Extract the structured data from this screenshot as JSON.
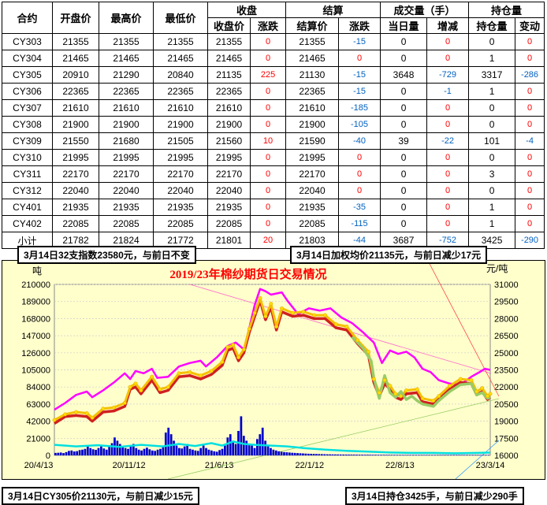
{
  "table": {
    "group_headers": {
      "close": "收盘",
      "settle": "结算",
      "volume": "成交量（手）",
      "oi": "持仓量"
    },
    "columns": [
      "合约",
      "开盘价",
      "最高价",
      "最低价",
      "收盘价",
      "涨跌",
      "结算价",
      "涨跌",
      "当日量",
      "增减",
      "持仓量",
      "变动"
    ],
    "rows": [
      [
        "CY303",
        "21355",
        "21355",
        "21355",
        "21355",
        "0",
        "21355",
        "-15",
        "0",
        "0",
        "0",
        "0"
      ],
      [
        "CY304",
        "21465",
        "21465",
        "21465",
        "21465",
        "0",
        "21465",
        "0",
        "0",
        "0",
        "1",
        "0"
      ],
      [
        "CY305",
        "20910",
        "21290",
        "20840",
        "21135",
        "225",
        "21130",
        "-15",
        "3648",
        "-729",
        "3317",
        "-286"
      ],
      [
        "CY306",
        "22365",
        "22365",
        "22365",
        "22365",
        "0",
        "22365",
        "-15",
        "0",
        "-1",
        "1",
        "0"
      ],
      [
        "CY307",
        "21610",
        "21610",
        "21610",
        "21610",
        "0",
        "21610",
        "-185",
        "0",
        "0",
        "0",
        "0"
      ],
      [
        "CY308",
        "21900",
        "21900",
        "21900",
        "21900",
        "0",
        "21900",
        "-105",
        "0",
        "0",
        "0",
        "0"
      ],
      [
        "CY309",
        "21550",
        "21680",
        "21505",
        "21560",
        "10",
        "21590",
        "-40",
        "39",
        "-22",
        "101",
        "-4"
      ],
      [
        "CY310",
        "21995",
        "21995",
        "21995",
        "21995",
        "0",
        "21995",
        "0",
        "0",
        "0",
        "0",
        "0"
      ],
      [
        "CY311",
        "22170",
        "22170",
        "22170",
        "22170",
        "0",
        "22170",
        "0",
        "0",
        "0",
        "3",
        "0"
      ],
      [
        "CY312",
        "22040",
        "22040",
        "22040",
        "22040",
        "0",
        "22040",
        "0",
        "0",
        "0",
        "0",
        "0"
      ],
      [
        "CY401",
        "21935",
        "21935",
        "21935",
        "21935",
        "0",
        "21935",
        "-35",
        "0",
        "0",
        "1",
        "0"
      ],
      [
        "CY402",
        "22085",
        "22085",
        "22085",
        "22085",
        "0",
        "22085",
        "-115",
        "0",
        "0",
        "1",
        "0"
      ],
      [
        "小计",
        "21782",
        "21824",
        "21772",
        "21801",
        "20",
        "21803",
        "-44",
        "3687",
        "-752",
        "3425",
        "-290"
      ]
    ]
  },
  "callouts": {
    "index": "3月14日32支指数23580元，与前日不变",
    "weighted": "3月14日加权均价21135元，与前日减少17元",
    "cy305": "3月14日CY305价21130元，与前日减少15元",
    "oi": "3月14日持仓3425手，与前日减少290手"
  },
  "chart_data": {
    "type": "line",
    "title": "2019/23年棉纱期货日交易情况",
    "left_unit": "吨",
    "right_unit": "元/吨",
    "left_ticks": [
      0,
      21000,
      42000,
      63000,
      84000,
      105000,
      126000,
      147000,
      168000,
      189000,
      210000
    ],
    "right_ticks": [
      16000,
      17500,
      19000,
      20500,
      22000,
      23500,
      25000,
      26500,
      28000,
      29500,
      31000
    ],
    "ylim_left": [
      0,
      210000
    ],
    "ylim_right": [
      16000,
      31000
    ],
    "x_ticks": [
      "20/4/13",
      "20/11/12",
      "21/6/13",
      "22/1/12",
      "22/8/13",
      "23/3/14"
    ],
    "series": [
      {
        "axis": "right",
        "color": "#ff00ff",
        "points": [
          [
            0,
            20000
          ],
          [
            4,
            20600
          ],
          [
            8,
            21300
          ],
          [
            12,
            21600
          ],
          [
            14,
            21100
          ],
          [
            18,
            21700
          ],
          [
            22,
            22400
          ],
          [
            26,
            23200
          ],
          [
            28,
            22700
          ],
          [
            30,
            23400
          ],
          [
            33,
            23200
          ],
          [
            36,
            23600
          ],
          [
            38,
            22800
          ],
          [
            42,
            22900
          ],
          [
            46,
            23800
          ],
          [
            50,
            24100
          ],
          [
            54,
            24300
          ],
          [
            56,
            23800
          ],
          [
            60,
            24600
          ],
          [
            64,
            25600
          ],
          [
            67,
            25900
          ],
          [
            70,
            25300
          ],
          [
            72,
            27200
          ],
          [
            74,
            29200
          ],
          [
            76,
            30600
          ],
          [
            78,
            30400
          ],
          [
            80,
            30100
          ],
          [
            84,
            30300
          ],
          [
            86,
            29600
          ],
          [
            90,
            28400
          ],
          [
            94,
            28900
          ],
          [
            98,
            28700
          ],
          [
            102,
            28900
          ],
          [
            106,
            28100
          ],
          [
            110,
            27600
          ],
          [
            114,
            26800
          ],
          [
            118,
            25900
          ],
          [
            121,
            24100
          ],
          [
            124,
            25200
          ],
          [
            127,
            24900
          ],
          [
            130,
            25100
          ],
          [
            133,
            24600
          ],
          [
            136,
            23600
          ],
          [
            139,
            23300
          ],
          [
            142,
            22600
          ],
          [
            146,
            22300
          ],
          [
            150,
            22200
          ],
          [
            154,
            22900
          ],
          [
            157,
            23300
          ],
          [
            159,
            23600
          ],
          [
            161,
            23500
          ]
        ]
      },
      {
        "axis": "right",
        "color": "#d02020",
        "points": [
          [
            0,
            18800
          ],
          [
            4,
            19400
          ],
          [
            8,
            19500
          ],
          [
            12,
            19400
          ],
          [
            14,
            19000
          ],
          [
            18,
            19800
          ],
          [
            22,
            19900
          ],
          [
            26,
            20300
          ],
          [
            28,
            21800
          ],
          [
            30,
            22000
          ],
          [
            32,
            21400
          ],
          [
            36,
            22600
          ],
          [
            39,
            21500
          ],
          [
            42,
            21700
          ],
          [
            46,
            22900
          ],
          [
            50,
            23000
          ],
          [
            54,
            22700
          ],
          [
            58,
            23100
          ],
          [
            62,
            23900
          ],
          [
            64,
            25200
          ],
          [
            66,
            25400
          ],
          [
            68,
            24300
          ],
          [
            70,
            25000
          ],
          [
            72,
            26800
          ],
          [
            74,
            28200
          ],
          [
            76,
            29600
          ],
          [
            78,
            27900
          ],
          [
            80,
            29000
          ],
          [
            82,
            27000
          ],
          [
            84,
            28600
          ],
          [
            88,
            28200
          ],
          [
            92,
            28300
          ],
          [
            96,
            28000
          ],
          [
            100,
            28000
          ],
          [
            104,
            27200
          ],
          [
            108,
            27000
          ],
          [
            112,
            25800
          ],
          [
            116,
            24800
          ],
          [
            118,
            22400
          ],
          [
            120,
            21200
          ],
          [
            122,
            22300
          ],
          [
            124,
            21800
          ],
          [
            126,
            21100
          ],
          [
            128,
            20900
          ],
          [
            130,
            21400
          ],
          [
            134,
            21500
          ],
          [
            136,
            20700
          ],
          [
            140,
            20500
          ],
          [
            142,
            20900
          ],
          [
            146,
            21800
          ],
          [
            150,
            22400
          ],
          [
            154,
            22300
          ],
          [
            156,
            21300
          ],
          [
            158,
            21600
          ],
          [
            160,
            20900
          ],
          [
            161,
            21100
          ]
        ]
      },
      {
        "axis": "right",
        "color": "#f5c000",
        "points": [
          [
            0,
            19100
          ],
          [
            4,
            19600
          ],
          [
            8,
            19800
          ],
          [
            12,
            19700
          ],
          [
            14,
            19300
          ],
          [
            18,
            20100
          ],
          [
            22,
            20200
          ],
          [
            26,
            20600
          ],
          [
            28,
            22000
          ],
          [
            30,
            22300
          ],
          [
            32,
            21700
          ],
          [
            36,
            22900
          ],
          [
            39,
            21800
          ],
          [
            42,
            22000
          ],
          [
            46,
            23200
          ],
          [
            50,
            23300
          ],
          [
            54,
            23000
          ],
          [
            58,
            23400
          ],
          [
            62,
            24200
          ],
          [
            64,
            25500
          ],
          [
            66,
            25700
          ],
          [
            68,
            24600
          ],
          [
            70,
            25300
          ],
          [
            72,
            27100
          ],
          [
            74,
            28500
          ],
          [
            76,
            29800
          ],
          [
            78,
            28200
          ],
          [
            80,
            29300
          ],
          [
            82,
            27300
          ],
          [
            84,
            28900
          ],
          [
            88,
            28500
          ],
          [
            92,
            28600
          ],
          [
            96,
            28300
          ],
          [
            100,
            28300
          ],
          [
            104,
            27500
          ],
          [
            108,
            27300
          ],
          [
            112,
            26100
          ],
          [
            116,
            25100
          ],
          [
            118,
            22700
          ],
          [
            120,
            21500
          ],
          [
            122,
            22600
          ],
          [
            124,
            22100
          ],
          [
            126,
            21400
          ],
          [
            128,
            21200
          ],
          [
            130,
            21700
          ],
          [
            134,
            21800
          ],
          [
            136,
            21000
          ],
          [
            140,
            20800
          ],
          [
            142,
            21200
          ],
          [
            146,
            22100
          ],
          [
            150,
            22700
          ],
          [
            154,
            22600
          ],
          [
            156,
            21600
          ],
          [
            158,
            21900
          ],
          [
            160,
            21200
          ],
          [
            161,
            21400
          ]
        ]
      },
      {
        "axis": "right",
        "color": "#99cc66",
        "points": [
          [
            110,
            26400
          ],
          [
            114,
            25400
          ],
          [
            117,
            24300
          ],
          [
            118,
            22800
          ],
          [
            120,
            21000
          ],
          [
            122,
            23000
          ],
          [
            124,
            21500
          ],
          [
            126,
            21100
          ],
          [
            128,
            21600
          ],
          [
            130,
            20900
          ],
          [
            132,
            21200
          ],
          [
            134,
            20800
          ],
          [
            136,
            20500
          ],
          [
            140,
            20300
          ],
          [
            142,
            20800
          ],
          [
            146,
            21600
          ],
          [
            150,
            22200
          ],
          [
            154,
            22300
          ],
          [
            156,
            21300
          ],
          [
            158,
            21500
          ],
          [
            160,
            21000
          ],
          [
            161,
            21100
          ]
        ]
      },
      {
        "axis": "left",
        "color": "#00e0e0",
        "points": [
          [
            0,
            13000
          ],
          [
            8,
            11000
          ],
          [
            16,
            12500
          ],
          [
            24,
            10500
          ],
          [
            32,
            13000
          ],
          [
            40,
            11000
          ],
          [
            46,
            14000
          ],
          [
            52,
            11500
          ],
          [
            58,
            15000
          ],
          [
            62,
            12000
          ],
          [
            66,
            17000
          ],
          [
            70,
            14000
          ],
          [
            74,
            13000
          ],
          [
            80,
            12000
          ],
          [
            86,
            11000
          ],
          [
            92,
            9000
          ],
          [
            100,
            7000
          ],
          [
            108,
            5500
          ],
          [
            116,
            4500
          ],
          [
            124,
            3500
          ],
          [
            132,
            3000
          ],
          [
            140,
            3000
          ],
          [
            148,
            2500
          ],
          [
            156,
            3000
          ],
          [
            161,
            3400
          ]
        ]
      }
    ],
    "volume_bars": [
      3000,
      3200,
      3500,
      2800,
      4000,
      5500,
      6000,
      4800,
      5200,
      6500,
      7000,
      8000,
      12000,
      9000,
      7500,
      6800,
      9000,
      11000,
      8500,
      7000,
      12000,
      15000,
      22000,
      18000,
      14000,
      10000,
      9000,
      8000,
      12000,
      14000,
      9000,
      7000,
      6000,
      8000,
      9500,
      7500,
      6000,
      5500,
      7000,
      8000,
      10000,
      28000,
      34000,
      26000,
      18000,
      12000,
      9000,
      8500,
      11000,
      14000,
      8000,
      7000,
      6000,
      5500,
      9000,
      12000,
      9000,
      7000,
      6000,
      5000,
      4500,
      6500,
      8000,
      12000,
      22000,
      26000,
      18000,
      14000,
      30000,
      48000,
      24000,
      18000,
      14000,
      12000,
      9000,
      20000,
      26000,
      34000,
      18000,
      12000,
      9000,
      7000,
      6000,
      5000,
      4500,
      4000,
      3800,
      3500,
      3200,
      3000,
      2800,
      2600,
      2400,
      2200,
      2000,
      1900,
      1800,
      1700,
      1600,
      1500,
      1400,
      1300,
      1250,
      1200,
      1150,
      1100,
      1050,
      1000,
      1000,
      950,
      900,
      880,
      860,
      840,
      820,
      800,
      780,
      760,
      740,
      720,
      700,
      690,
      680,
      670,
      660,
      650,
      640,
      630,
      620,
      610,
      600,
      600,
      600,
      600,
      600,
      600,
      600,
      600,
      600,
      600,
      600,
      600,
      600,
      600,
      600,
      600,
      600,
      600,
      600,
      600,
      600,
      600,
      600,
      600,
      600,
      600,
      600,
      600,
      600,
      600,
      600,
      600
    ]
  }
}
